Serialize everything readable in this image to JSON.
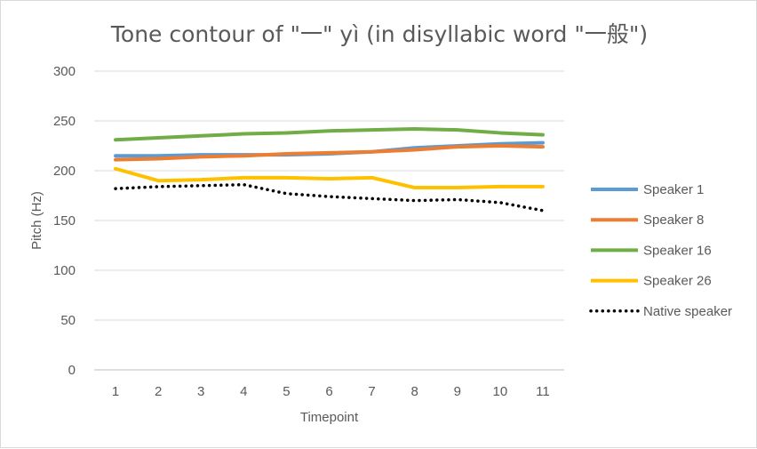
{
  "chart_data": {
    "type": "line",
    "title": "Tone contour of \"一\" yì (in disyllabic word \"一般\")",
    "xlabel": "Timepoint",
    "ylabel": "Pitch (Hz)",
    "x": [
      1,
      2,
      3,
      4,
      5,
      6,
      7,
      8,
      9,
      10,
      11
    ],
    "ylim": [
      0,
      300
    ],
    "yticks": [
      0,
      50,
      100,
      150,
      200,
      250,
      300
    ],
    "grid": "horizontal",
    "legend_position": "right",
    "series": [
      {
        "name": "Speaker 1",
        "color": "#5B9BD5",
        "style": "solid",
        "values": [
          215,
          215,
          216,
          216,
          216,
          217,
          219,
          223,
          225,
          227,
          228
        ]
      },
      {
        "name": "Speaker 8",
        "color": "#ED7D31",
        "style": "solid",
        "values": [
          211,
          212,
          214,
          215,
          217,
          218,
          219,
          221,
          224,
          225,
          224
        ]
      },
      {
        "name": "Speaker 16",
        "color": "#70AD47",
        "style": "solid",
        "values": [
          231,
          233,
          235,
          237,
          238,
          240,
          241,
          242,
          241,
          238,
          236
        ]
      },
      {
        "name": "Speaker 26",
        "color": "#FFC000",
        "style": "solid",
        "values": [
          202,
          190,
          191,
          193,
          193,
          192,
          193,
          183,
          183,
          184,
          184
        ]
      },
      {
        "name": "Native speaker",
        "color": "#000000",
        "style": "dotted",
        "values": [
          182,
          184,
          185,
          186,
          177,
          174,
          172,
          170,
          171,
          168,
          160
        ]
      }
    ]
  }
}
